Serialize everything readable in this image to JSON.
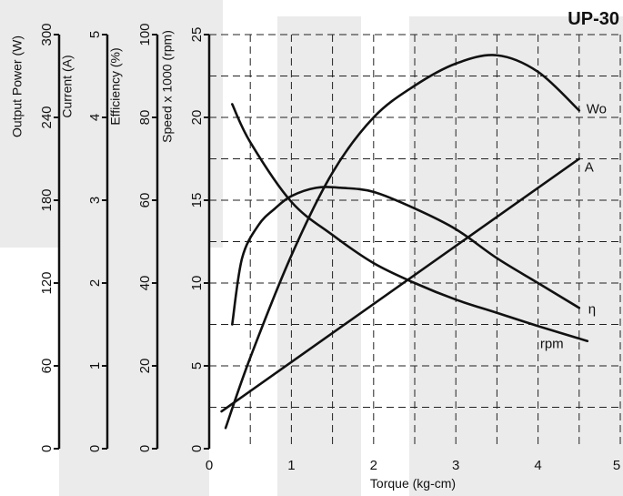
{
  "chart_data": {
    "type": "line",
    "title": "UP-30",
    "xlabel": "Torque (kg-cm)",
    "xlim": [
      0,
      5
    ],
    "x_ticks": [
      "0",
      "1",
      "2",
      "3",
      "4",
      "5"
    ],
    "grid": true,
    "y_axes": [
      {
        "label": "Output Power (W)",
        "range": [
          0,
          300
        ],
        "ticks": [
          "0",
          "60",
          "120",
          "180",
          "240",
          "300"
        ]
      },
      {
        "label": "Current (A)",
        "range": [
          0,
          5
        ],
        "ticks": [
          "0",
          "1",
          "2",
          "3",
          "4",
          "5"
        ]
      },
      {
        "label": "Efficiency (%)",
        "range": [
          0,
          100
        ],
        "ticks": [
          "0",
          "20",
          "40",
          "60",
          "80",
          "100"
        ]
      },
      {
        "label": "Speed x 1000 (rpm)",
        "range": [
          0,
          25
        ],
        "ticks": [
          "0",
          "5",
          "10",
          "15",
          "20",
          "25"
        ]
      }
    ],
    "series": [
      {
        "name": "Wo",
        "axis": "Output Power (W)",
        "x": [
          0.2,
          0.5,
          1.0,
          1.5,
          2.0,
          2.5,
          3.0,
          3.5,
          4.0,
          4.5
        ],
        "y": [
          15,
          66,
          140,
          200,
          240,
          263,
          279,
          285,
          273,
          245
        ]
      },
      {
        "name": "A",
        "axis": "Current (A)",
        "x": [
          0.15,
          4.5
        ],
        "y": [
          0.45,
          3.5
        ]
      },
      {
        "name": "η",
        "axis": "Efficiency (%)",
        "x": [
          0.28,
          0.4,
          0.6,
          0.8,
          1.0,
          1.3,
          1.6,
          2.0,
          2.5,
          3.0,
          3.5,
          4.0,
          4.5
        ],
        "y": [
          30,
          46,
          54,
          58,
          61,
          63,
          63,
          62,
          58,
          53,
          46,
          40,
          34
        ]
      },
      {
        "name": "rpm",
        "axis": "Speed x 1000 (rpm)",
        "x": [
          0.28,
          0.5,
          1.0,
          1.5,
          2.0,
          2.5,
          3.0,
          3.5,
          4.0,
          4.6
        ],
        "y": [
          20.8,
          18.5,
          14.9,
          12.9,
          11.2,
          10.0,
          9.0,
          8.2,
          7.4,
          6.5
        ]
      }
    ]
  }
}
